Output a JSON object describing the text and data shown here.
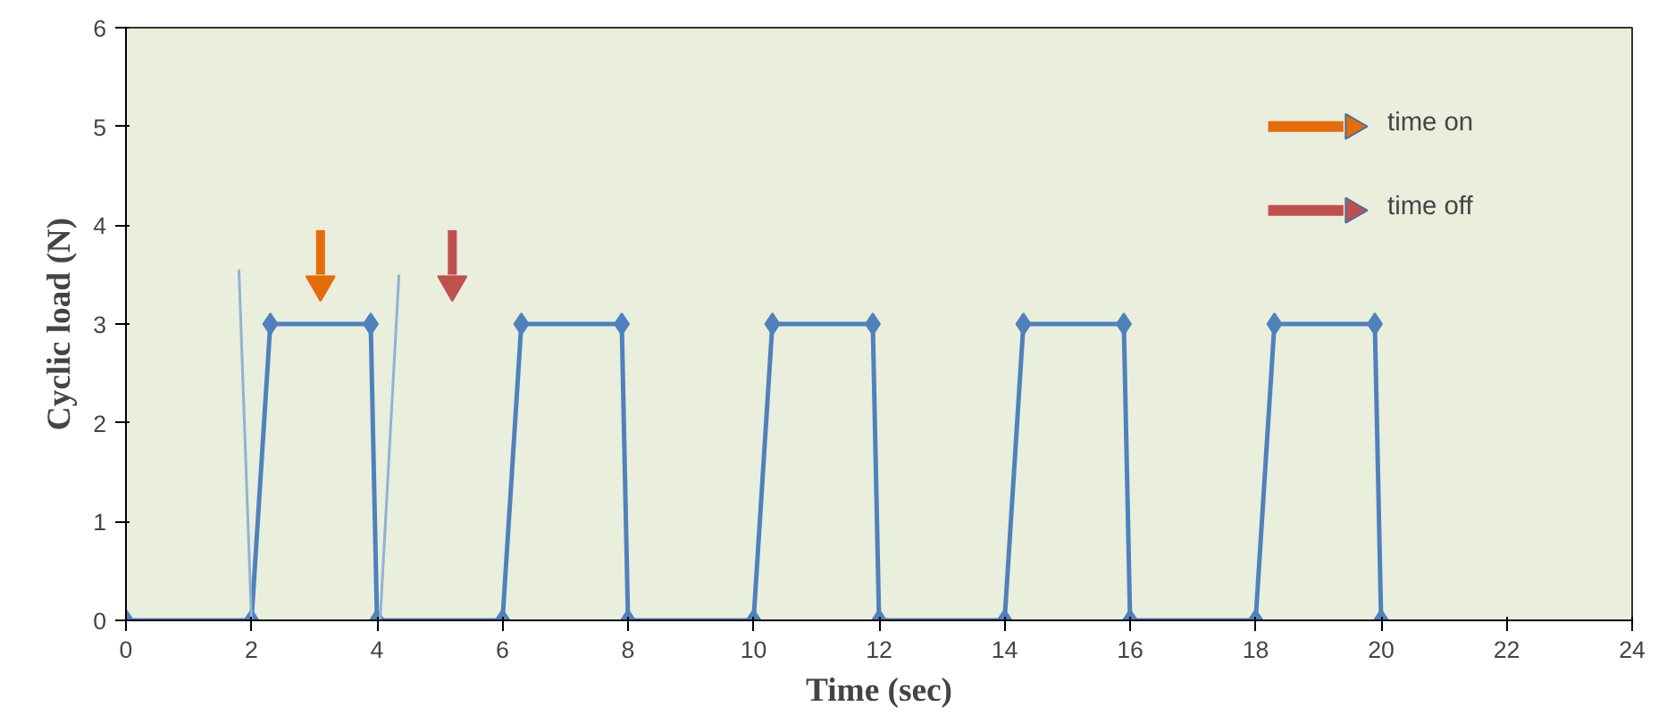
{
  "chart_data": {
    "type": "line",
    "xlabel": "Time (sec)",
    "ylabel": "Cyclic load (N)",
    "x": [
      0,
      2,
      2.3,
      3.9,
      4,
      6,
      6.3,
      7.9,
      8,
      10,
      10.3,
      11.9,
      12,
      14,
      14.3,
      15.9,
      16,
      18,
      18.3,
      19.9,
      20
    ],
    "series": [
      {
        "color": "#4f81bd",
        "values": [
          0,
          0,
          3,
          3,
          0,
          0,
          3,
          3,
          0,
          0,
          3,
          3,
          0,
          0,
          3,
          3,
          0,
          0,
          3,
          3,
          0
        ]
      },
      {
        "color": "#8fb3d3",
        "x": [
          1.8,
          2.0
        ],
        "values": [
          3.55,
          0
        ],
        "marker": "none"
      },
      {
        "color": "#8fb3d3",
        "x": [
          4.05,
          4.35
        ],
        "values": [
          0,
          3.5
        ],
        "marker": "none"
      }
    ],
    "xlim": [
      0,
      24
    ],
    "xticks": [
      0,
      2,
      4,
      6,
      8,
      10,
      12,
      14,
      16,
      18,
      20,
      22,
      24
    ],
    "ylim": [
      0,
      6
    ],
    "yticks": [
      0,
      1,
      2,
      3,
      4,
      5,
      6
    ],
    "grid": false,
    "marker": "diamond",
    "line_style": "solid",
    "annotations": [
      "time on",
      "time off"
    ]
  }
}
